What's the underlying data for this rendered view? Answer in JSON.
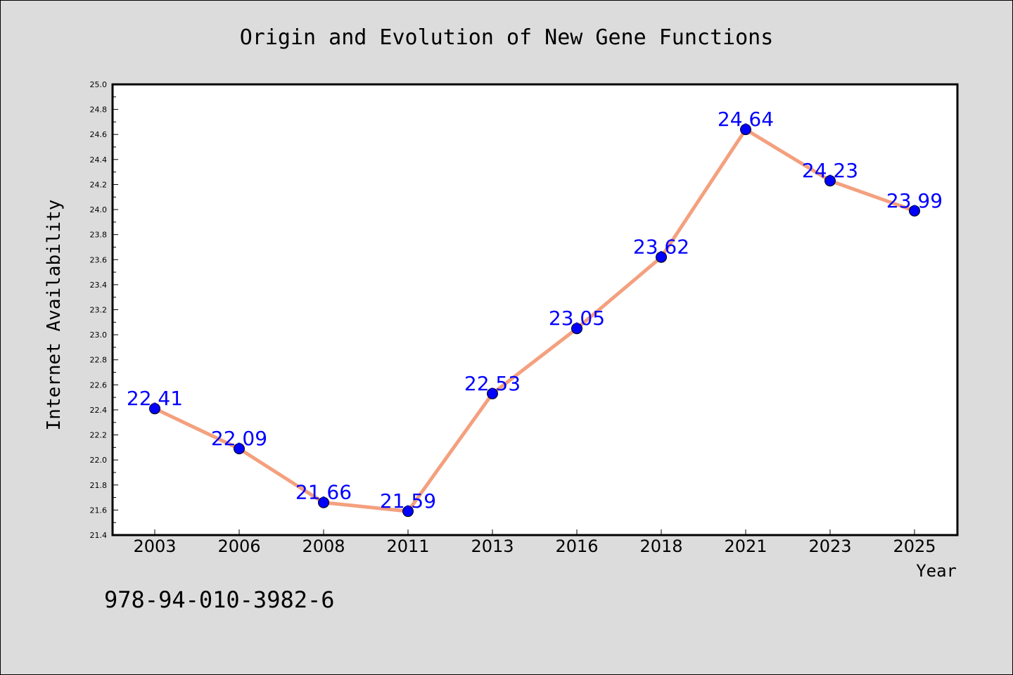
{
  "chart_data": {
    "type": "line",
    "title": "Origin and Evolution of New Gene Functions",
    "xlabel": "Year",
    "ylabel": "Internet Availability",
    "categories": [
      "2003",
      "2006",
      "2008",
      "2011",
      "2013",
      "2016",
      "2018",
      "2021",
      "2023",
      "2025"
    ],
    "series": [
      {
        "values": [
          22.41,
          22.09,
          21.66,
          21.59,
          22.53,
          23.05,
          23.62,
          24.64,
          24.23,
          23.99
        ]
      }
    ],
    "value_labels": [
      "22.41",
      "22.09",
      "21.66",
      "21.59",
      "22.53",
      "23.05",
      "23.62",
      "24.64",
      "24.23",
      "23.99"
    ],
    "ylim": [
      21.4,
      25.0
    ],
    "y_ticks": [
      "21.4",
      "21.6",
      "21.8",
      "22.0",
      "22.2",
      "22.4",
      "22.6",
      "22.8",
      "23.0",
      "23.2",
      "23.4",
      "23.6",
      "23.8",
      "24.0",
      "24.2",
      "24.4",
      "24.6",
      "24.8",
      "25.0"
    ],
    "grid": false,
    "line_color": "#f4a07e",
    "marker_color": "#0000ff",
    "label_color": "#0000ff"
  },
  "isbn_text": "978-94-010-3982-6"
}
